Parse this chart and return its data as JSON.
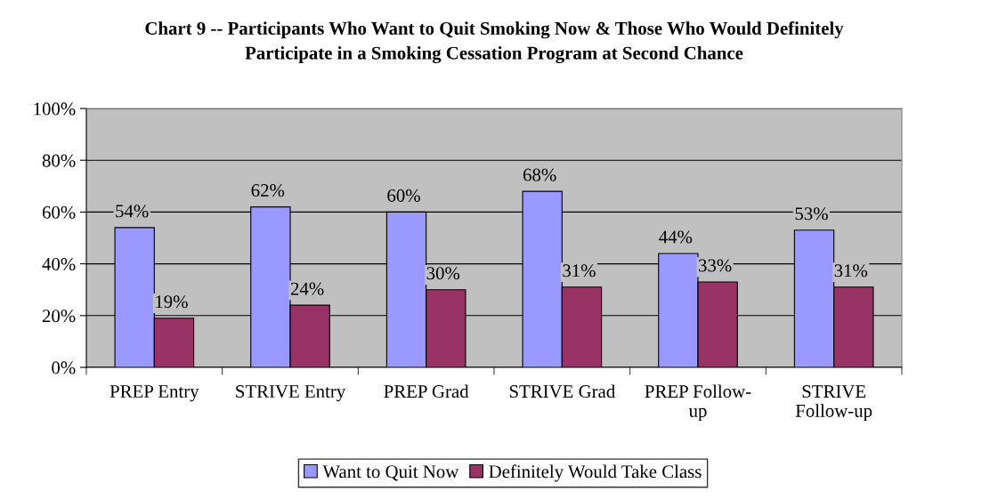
{
  "chart_data": {
    "type": "bar",
    "title": "Chart 9 -- Participants Who Want to Quit Smoking Now & Those Who Would Definitely\nParticipate in a Smoking Cessation Program at Second Chance",
    "categories": [
      "PREP Entry",
      "STRIVE Entry",
      "PREP Grad",
      "STRIVE Grad",
      "PREP Follow-\nup",
      "STRIVE\nFollow-up"
    ],
    "series": [
      {
        "name": "Want to Quit Now",
        "color": "#9999ff",
        "values": [
          54,
          62,
          60,
          68,
          44,
          53
        ],
        "value_labels": [
          "54%",
          "62%",
          "60%",
          "68%",
          "44%",
          "53%"
        ]
      },
      {
        "name": "Definitely Would Take Class",
        "color": "#993366",
        "values": [
          19,
          24,
          30,
          31,
          33,
          31
        ],
        "value_labels": [
          "19%",
          "24%",
          "30%",
          "31%",
          "33%",
          "31%"
        ]
      }
    ],
    "ylim": [
      0,
      100
    ],
    "yticks": [
      {
        "value": 0,
        "label": "0%"
      },
      {
        "value": 20,
        "label": "20%"
      },
      {
        "value": 40,
        "label": "40%"
      },
      {
        "value": 60,
        "label": "60%"
      },
      {
        "value": 80,
        "label": "80%"
      },
      {
        "value": 100,
        "label": "100%"
      }
    ],
    "grid": "y",
    "legend": "bottom"
  }
}
